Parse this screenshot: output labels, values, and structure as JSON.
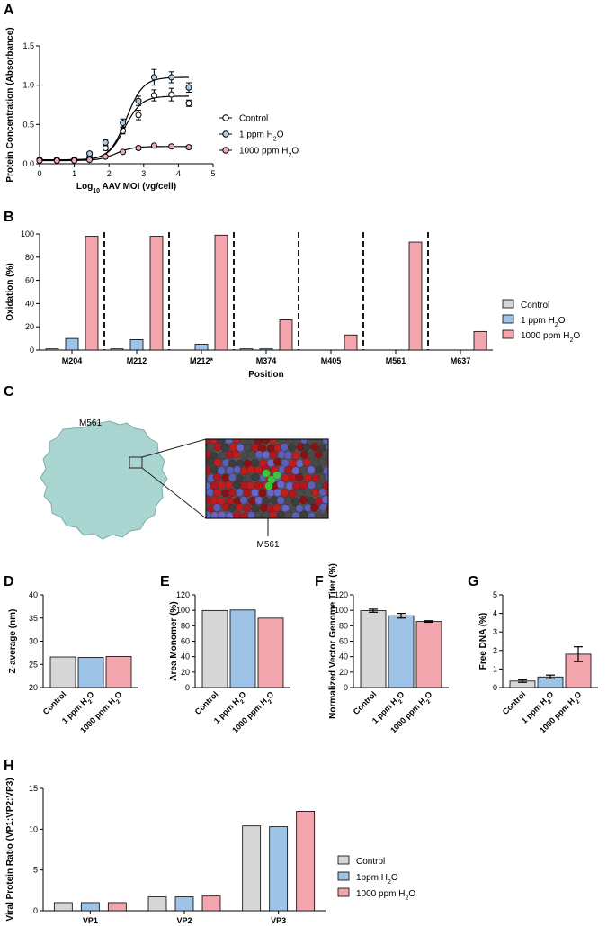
{
  "colors": {
    "control": "#d6d6d6",
    "ppm1": "#9dc3e6",
    "ppm1000": "#f4a6ae",
    "ppm1000_marker": "#f2aab2",
    "ppm1_marker": "#a9cde9",
    "capsid": "#a9d6d2",
    "zoom_bg": "#555555"
  },
  "panels": {
    "A": {
      "label": "A"
    },
    "B": {
      "label": "B"
    },
    "C": {
      "label": "C",
      "top_label": "M561",
      "bottom_label": "M561"
    },
    "D": {
      "label": "D"
    },
    "E": {
      "label": "E"
    },
    "F": {
      "label": "F"
    },
    "G": {
      "label": "G"
    },
    "H": {
      "label": "H"
    }
  },
  "legend_main": [
    {
      "key": "control",
      "pre": "Control",
      "sub": "",
      "post": ""
    },
    {
      "key": "ppm1",
      "pre": "1 ppm H",
      "sub": "2",
      "post": "O"
    },
    {
      "key": "ppm1000",
      "pre": "1000 ppm H",
      "sub": "2",
      "post": "O"
    }
  ],
  "legend_H": [
    {
      "key": "control",
      "pre": "Control",
      "sub": "",
      "post": ""
    },
    {
      "key": "ppm1",
      "pre": "1ppm H",
      "sub": "2",
      "post": "O"
    },
    {
      "key": "ppm1000",
      "pre": "1000 ppm H",
      "sub": "2",
      "post": "O"
    }
  ],
  "bar_categories": [
    {
      "pre": "Control",
      "sub": "",
      "post": ""
    },
    {
      "pre": "1 ppm H",
      "sub": "2",
      "post": "O"
    },
    {
      "pre": "1000 ppm H",
      "sub": "2",
      "post": "O"
    }
  ],
  "chart_data": [
    {
      "panel": "A",
      "type": "scatter",
      "ylabel": "Protein Concentration (Absorbance)",
      "xlabel_pre": "Log",
      "xlabel_sub": "10",
      "xlabel_post": " AAV MOI (vg/cell)",
      "xlim": [
        0,
        5
      ],
      "ylim": [
        0,
        1.5
      ],
      "xticks": [
        0,
        1,
        2,
        3,
        4,
        5
      ],
      "yticks": [
        0.0,
        0.5,
        1.0,
        1.5
      ],
      "yticklabels": [
        "0.0",
        "0.5",
        "1.0",
        "1.5"
      ],
      "series": [
        {
          "key": "control",
          "x": [
            0,
            0.5,
            1.0,
            1.44,
            1.9,
            2.4,
            2.85,
            3.3,
            3.8,
            4.3
          ],
          "y": [
            0.05,
            0.05,
            0.05,
            0.08,
            0.2,
            0.42,
            0.62,
            0.87,
            0.88,
            0.77
          ],
          "err": [
            0.01,
            0.01,
            0.01,
            0.02,
            0.03,
            0.04,
            0.06,
            0.07,
            0.08,
            0.04
          ],
          "fit": {
            "bottom": 0.05,
            "top": 0.86,
            "ec50": 2.45,
            "hill": 1.8
          }
        },
        {
          "key": "ppm1",
          "x": [
            0,
            0.5,
            1.0,
            1.44,
            1.9,
            2.4,
            2.85,
            3.3,
            3.8,
            4.3
          ],
          "y": [
            0.05,
            0.05,
            0.05,
            0.13,
            0.27,
            0.52,
            0.8,
            1.1,
            1.1,
            0.97
          ],
          "err": [
            0.01,
            0.01,
            0.01,
            0.02,
            0.04,
            0.05,
            0.06,
            0.1,
            0.07,
            0.06
          ],
          "fit": {
            "bottom": 0.05,
            "top": 1.1,
            "ec50": 2.5,
            "hill": 1.8
          }
        },
        {
          "key": "ppm1000",
          "x": [
            0,
            0.5,
            1.0,
            1.44,
            1.9,
            2.4,
            2.85,
            3.3,
            3.8,
            4.3
          ],
          "y": [
            0.04,
            0.04,
            0.04,
            0.05,
            0.09,
            0.15,
            0.2,
            0.23,
            0.22,
            0.21
          ],
          "err": [
            0.005,
            0.005,
            0.005,
            0.005,
            0.01,
            0.01,
            0.02,
            0.02,
            0.02,
            0.02
          ],
          "fit": {
            "bottom": 0.04,
            "top": 0.22,
            "ec50": 2.2,
            "hill": 1.8
          }
        }
      ]
    },
    {
      "panel": "B",
      "type": "bar",
      "ylabel": "Oxidation (%)",
      "xlabel": "Position",
      "ylim": [
        0,
        100
      ],
      "yticks": [
        0,
        20,
        40,
        60,
        80,
        100
      ],
      "categories": [
        "M204",
        "M212",
        "M212*",
        "M374",
        "M405",
        "M561",
        "M637"
      ],
      "series": [
        {
          "key": "control",
          "values": [
            1,
            1,
            0,
            1,
            0,
            0,
            0
          ]
        },
        {
          "key": "ppm1",
          "values": [
            10,
            9,
            5,
            1,
            0,
            0,
            0
          ]
        },
        {
          "key": "ppm1000",
          "values": [
            98,
            98,
            99,
            26,
            13,
            93,
            16
          ]
        }
      ]
    },
    {
      "panel": "D",
      "type": "bar",
      "ylabel": "Z-average (nm)",
      "ylim": [
        20,
        40
      ],
      "yticks": [
        20,
        25,
        30,
        35,
        40
      ],
      "values": [
        26.6,
        26.5,
        26.7
      ]
    },
    {
      "panel": "E",
      "type": "bar",
      "ylabel": "Area Monomer (%)",
      "ylim": [
        0,
        120
      ],
      "yticks": [
        0,
        20,
        40,
        60,
        80,
        100,
        120
      ],
      "values": [
        99.8,
        100.4,
        89.9
      ]
    },
    {
      "panel": "F",
      "type": "bar",
      "ylabel": "Normalized Vector Genome Titer (%)",
      "ylim": [
        0,
        120
      ],
      "yticks": [
        0,
        20,
        40,
        60,
        80,
        100,
        120
      ],
      "values": [
        99.5,
        93,
        85.5
      ],
      "err": [
        2,
        3,
        1
      ]
    },
    {
      "panel": "G",
      "type": "bar",
      "ylabel": "Free DNA (%)",
      "ylim": [
        0,
        5
      ],
      "yticks": [
        0,
        1,
        2,
        3,
        4,
        5
      ],
      "values": [
        0.35,
        0.57,
        1.8
      ],
      "err": [
        0.07,
        0.1,
        0.4
      ]
    },
    {
      "panel": "H",
      "type": "bar",
      "ylabel": "Viral Protein Ratio (VP1:VP2:VP3)",
      "ylim": [
        0,
        15
      ],
      "yticks": [
        0,
        5,
        10,
        15
      ],
      "categories": [
        "VP1",
        "VP2",
        "VP3"
      ],
      "series": [
        {
          "key": "control",
          "values": [
            1,
            1.7,
            10.4
          ]
        },
        {
          "key": "ppm1",
          "values": [
            1,
            1.7,
            10.3
          ]
        },
        {
          "key": "ppm1000",
          "values": [
            1,
            1.8,
            12.2
          ]
        }
      ]
    }
  ]
}
